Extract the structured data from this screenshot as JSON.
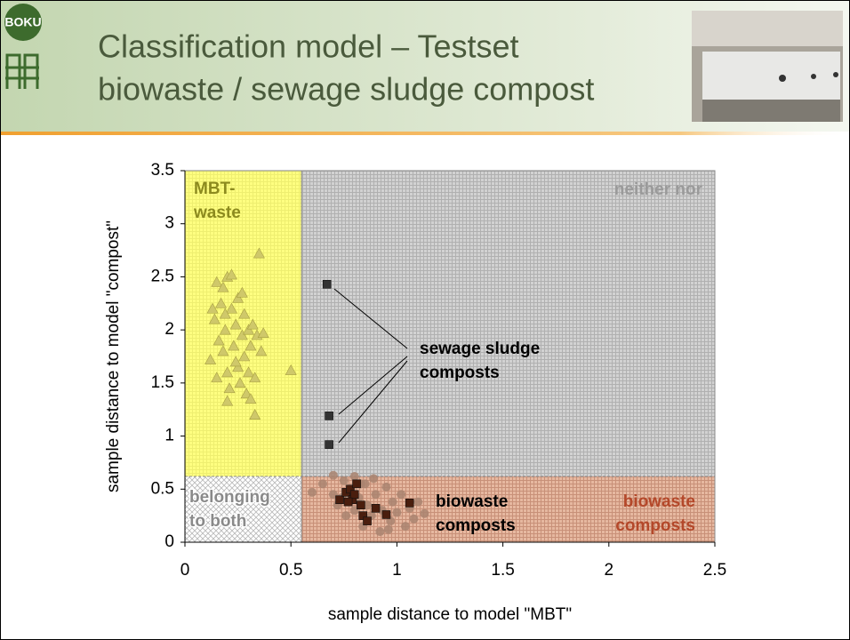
{
  "logo_text": "BOKU",
  "title_lines": [
    "Classification model – Testset",
    "biowaste / sewage sludge compost"
  ],
  "chart_data": {
    "type": "scatter",
    "xlabel": "sample distance to model \"MBT\"",
    "ylabel": "sample distance to model \"compost\"",
    "xlim": [
      0,
      2.5
    ],
    "ylim": [
      0,
      3.5
    ],
    "xticks": [
      0,
      0.5,
      1,
      1.5,
      2,
      2.5
    ],
    "yticks": [
      0,
      0.5,
      1,
      1.5,
      2,
      2.5,
      3,
      3.5
    ],
    "x_threshold": 0.55,
    "y_threshold": 0.62,
    "annotations": [
      {
        "lines": [
          "MBT-",
          "waste"
        ],
        "color": "#8c8a1e"
      },
      {
        "lines": [
          "neither nor"
        ],
        "color": "#9a9a9a"
      },
      {
        "lines": [
          "belonging",
          "to both"
        ],
        "color": "#8a8a8a"
      },
      {
        "lines": [
          "biowaste",
          "composts"
        ],
        "color": "#b4482a"
      },
      {
        "lines": [
          "sewage sludge",
          "composts"
        ],
        "color": "#000000"
      },
      {
        "lines": [
          "biowaste",
          "composts"
        ],
        "color": "#000000"
      }
    ],
    "series": [
      {
        "marker": "triangle",
        "color": "#cfc86a",
        "x": [
          0.12,
          0.13,
          0.14,
          0.15,
          0.16,
          0.17,
          0.18,
          0.18,
          0.19,
          0.2,
          0.2,
          0.21,
          0.22,
          0.22,
          0.23,
          0.24,
          0.25,
          0.25,
          0.26,
          0.27,
          0.28,
          0.28,
          0.29,
          0.3,
          0.3,
          0.31,
          0.32,
          0.33,
          0.33,
          0.34,
          0.35,
          0.36,
          0.37,
          0.2,
          0.5,
          0.15,
          0.24,
          0.27,
          0.19,
          0.31
        ],
        "y": [
          1.72,
          2.2,
          2.1,
          2.45,
          1.9,
          2.25,
          2.4,
          1.8,
          2.0,
          2.5,
          1.6,
          1.45,
          2.52,
          2.2,
          1.85,
          2.05,
          1.65,
          2.3,
          1.5,
          1.95,
          2.15,
          1.75,
          1.4,
          2.0,
          1.6,
          1.85,
          2.05,
          1.2,
          1.55,
          1.95,
          2.72,
          1.8,
          1.97,
          1.33,
          1.62,
          1.55,
          1.7,
          2.35,
          2.15,
          1.35
        ]
      },
      {
        "marker": "circle",
        "color": "#a98470",
        "x": [
          0.6,
          0.65,
          0.7,
          0.7,
          0.72,
          0.75,
          0.76,
          0.78,
          0.8,
          0.8,
          0.82,
          0.84,
          0.85,
          0.86,
          0.88,
          0.9,
          0.92,
          0.93,
          0.95,
          0.97,
          0.98,
          1.0,
          1.02,
          1.04,
          1.06,
          1.08,
          1.1,
          1.13,
          0.74,
          0.83,
          0.89,
          0.96
        ],
        "y": [
          0.47,
          0.55,
          0.63,
          0.45,
          0.35,
          0.58,
          0.25,
          0.5,
          0.62,
          0.3,
          0.42,
          0.15,
          0.55,
          0.35,
          0.25,
          0.45,
          0.1,
          0.3,
          0.52,
          0.2,
          0.38,
          0.28,
          0.45,
          0.15,
          0.32,
          0.22,
          0.38,
          0.27,
          0.42,
          0.55,
          0.6,
          0.12
        ]
      },
      {
        "marker": "square",
        "color": "#4a1e0e",
        "x": [
          0.73,
          0.76,
          0.78,
          0.79,
          0.8,
          0.81,
          0.83,
          0.84,
          0.86,
          0.9,
          0.95,
          1.06,
          0.77
        ],
        "y": [
          0.4,
          0.47,
          0.5,
          0.4,
          0.45,
          0.55,
          0.35,
          0.25,
          0.2,
          0.32,
          0.26,
          0.37,
          0.38
        ]
      },
      {
        "marker": "square",
        "color": "#333333",
        "x": [
          0.67,
          0.68,
          0.68
        ],
        "y": [
          2.43,
          1.19,
          0.92
        ]
      }
    ]
  }
}
